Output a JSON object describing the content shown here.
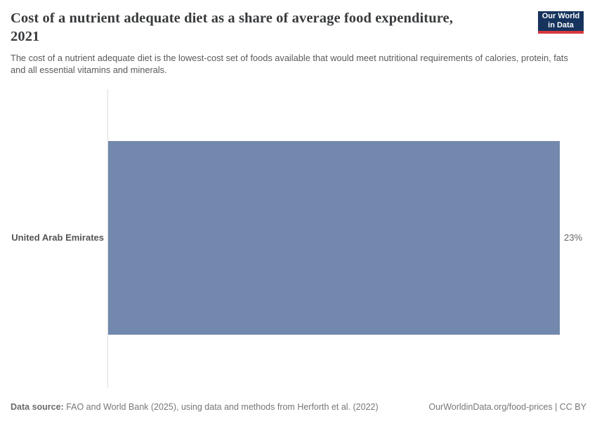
{
  "header": {
    "title": "Cost of a nutrient adequate diet as a share of average food expenditure, 2021",
    "subtitle": "The cost of a nutrient adequate diet is the lowest-cost set of foods available that would meet nutritional requirements of calories, protein, fats and all essential vitamins and minerals.",
    "logo": {
      "line1": "Our World",
      "line2": "in Data",
      "bg_color": "#16335d",
      "accent_color": "#d7383f"
    }
  },
  "chart_data": {
    "type": "bar",
    "orientation": "horizontal",
    "title": "Cost of a nutrient adequate diet as a share of average food expenditure, 2021",
    "categories": [
      "United Arab Emirates"
    ],
    "values": [
      23
    ],
    "value_labels": [
      "23%"
    ],
    "unit": "%",
    "xlabel": "",
    "ylabel": "",
    "xlim": [
      0,
      23
    ],
    "grid": false,
    "legend": "none",
    "bar_color": "#7288ad"
  },
  "footer": {
    "datasource_label": "Data source:",
    "datasource_text": " FAO and World Bank (2025), using data and methods from Herforth et al. (2022)",
    "link_text": "OurWorldinData.org/food-prices | CC BY"
  }
}
